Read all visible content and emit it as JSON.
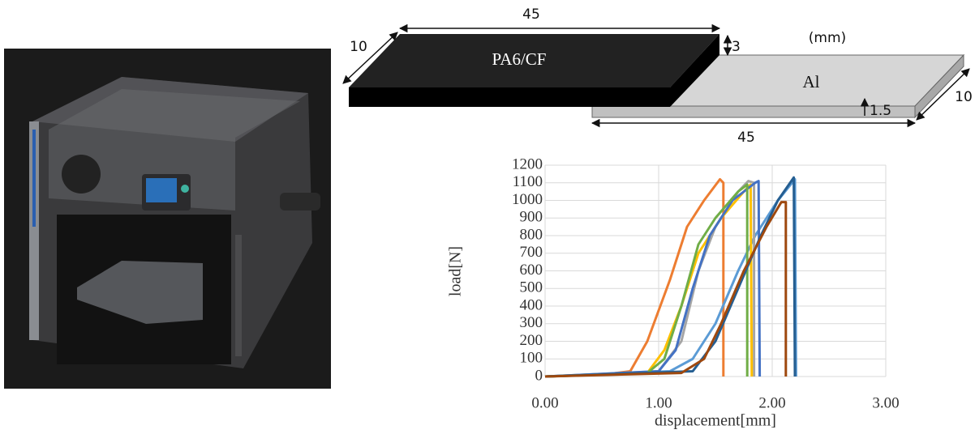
{
  "diagram": {
    "top_length": "45",
    "top_width": "10",
    "top_thickness": "3",
    "top_material": "PA6/CF",
    "unit": "(mm)",
    "bottom_material": "Al",
    "bottom_thickness": "1.5",
    "bottom_width": "10",
    "bottom_length": "45"
  },
  "chart_data": {
    "type": "line",
    "x_label": "displacement[mm]",
    "y_label": "load[N]",
    "xlim": [
      0,
      3
    ],
    "xticks": [
      {
        "value": 0,
        "label": "0.00"
      },
      {
        "value": 1,
        "label": "1.00"
      },
      {
        "value": 2,
        "label": "2.00"
      },
      {
        "value": 3,
        "label": "3.00"
      }
    ],
    "ylim": [
      0,
      1200
    ],
    "yticks": [
      0,
      100,
      200,
      300,
      400,
      500,
      600,
      700,
      800,
      900,
      1000,
      1100,
      1200
    ],
    "grid": true,
    "series": [
      {
        "color": "#ed7d31",
        "x": [
          0,
          0.5,
          0.75,
          0.9,
          1.1,
          1.25,
          1.4,
          1.54,
          1.57,
          1.57
        ],
        "values": [
          0,
          10,
          30,
          200,
          550,
          850,
          1000,
          1120,
          1100,
          0
        ]
      },
      {
        "color": "#5b9bd5",
        "x": [
          0,
          1.1,
          1.3,
          1.5,
          1.7,
          1.85,
          2.05,
          2.2,
          2.21
        ],
        "values": [
          0,
          30,
          100,
          300,
          600,
          800,
          1000,
          1120,
          0
        ]
      },
      {
        "color": "#a5a5a5",
        "x": [
          0,
          1.0,
          1.2,
          1.35,
          1.5,
          1.7,
          1.79,
          1.84,
          1.84
        ],
        "values": [
          0,
          30,
          200,
          600,
          850,
          1050,
          1110,
          1100,
          0
        ]
      },
      {
        "color": "#ffc000",
        "x": [
          0,
          0.9,
          1.05,
          1.2,
          1.35,
          1.55,
          1.75,
          1.81,
          1.82
        ],
        "values": [
          0,
          20,
          150,
          400,
          700,
          900,
          1050,
          1090,
          0
        ]
      },
      {
        "color": "#4472c4",
        "x": [
          0,
          1.0,
          1.15,
          1.3,
          1.45,
          1.65,
          1.85,
          1.88,
          1.89
        ],
        "values": [
          0,
          30,
          150,
          500,
          800,
          1000,
          1100,
          1110,
          0
        ]
      },
      {
        "color": "#70ad47",
        "x": [
          0,
          0.9,
          1.05,
          1.2,
          1.35,
          1.5,
          1.7,
          1.78,
          1.78
        ],
        "values": [
          0,
          20,
          100,
          400,
          750,
          900,
          1050,
          1090,
          0
        ]
      },
      {
        "color": "#255e91",
        "x": [
          0,
          1.3,
          1.5,
          1.7,
          1.9,
          2.05,
          2.19,
          2.2
        ],
        "values": [
          0,
          30,
          200,
          500,
          800,
          1000,
          1130,
          0
        ]
      },
      {
        "color": "#9e480e",
        "x": [
          0,
          1.2,
          1.4,
          1.55,
          1.75,
          1.95,
          2.08,
          2.12,
          2.12
        ],
        "values": [
          0,
          20,
          100,
          300,
          600,
          850,
          990,
          990,
          0
        ]
      }
    ]
  }
}
